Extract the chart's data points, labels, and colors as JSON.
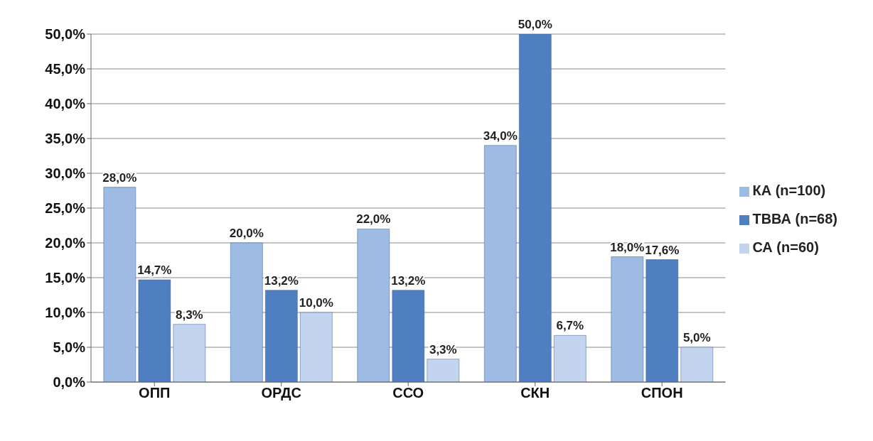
{
  "chart_data": {
    "type": "bar",
    "categories": [
      "ОПП",
      "ОРДС",
      "ССО",
      "СКН",
      "СПОН"
    ],
    "series": [
      {
        "name": "КА (n=100)",
        "color": "#9dbbe3",
        "values": [
          28.0,
          20.0,
          22.0,
          34.0,
          18.0
        ],
        "value_labels": [
          "28,0%",
          "20,0%",
          "22,0%",
          "34,0%",
          "18,0%"
        ]
      },
      {
        "name": "ТВВА (n=68)",
        "color": "#4f7fc0",
        "values": [
          14.7,
          13.2,
          13.2,
          50.0,
          17.6
        ],
        "value_labels": [
          "14,7%",
          "13,2%",
          "13,2%",
          "50,0%",
          "17,6%"
        ]
      },
      {
        "name": "СА (n=60)",
        "color": "#c3d5ee",
        "values": [
          8.3,
          10.0,
          3.3,
          6.7,
          5.0
        ],
        "value_labels": [
          "8,3%",
          "10,0%",
          "3,3%",
          "6,7%",
          "5,0%"
        ]
      }
    ],
    "ylim": [
      0,
      50
    ],
    "yticks": [
      {
        "value": 0,
        "label": "0,0%"
      },
      {
        "value": 5,
        "label": "5,0%"
      },
      {
        "value": 10,
        "label": "10,0%"
      },
      {
        "value": 15,
        "label": "15,0%"
      },
      {
        "value": 20,
        "label": "20,0%"
      },
      {
        "value": 25,
        "label": "25,0%"
      },
      {
        "value": 30,
        "label": "30,0%"
      },
      {
        "value": 35,
        "label": "35,0%"
      },
      {
        "value": 40,
        "label": "40,0%"
      },
      {
        "value": 45,
        "label": "45,0%"
      },
      {
        "value": 50,
        "label": "50,0%"
      }
    ],
    "grid": "y",
    "legend": "right"
  }
}
